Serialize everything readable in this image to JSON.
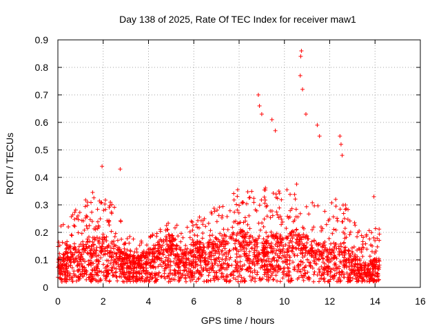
{
  "chart_data": {
    "type": "scatter",
    "title": "Day 138 of 2025, Rate Of TEC Index for receiver maw1",
    "xlabel": "GPS time / hours",
    "ylabel": "ROTI / TECUs",
    "xlim": [
      0,
      16
    ],
    "ylim": [
      0,
      0.9
    ],
    "xticks": [
      "0",
      "2",
      "4",
      "6",
      "8",
      "10",
      "12",
      "14",
      "16"
    ],
    "yticks": [
      "0",
      "0.1",
      "0.2",
      "0.3",
      "0.4",
      "0.5",
      "0.6",
      "0.7",
      "0.8",
      "0.9"
    ],
    "grid": true,
    "marker": "+",
    "color": "#ff0000",
    "data_range_hours": [
      0,
      14.2
    ],
    "series_envelope": {
      "x": [
        0.0,
        0.5,
        1.0,
        1.5,
        2.0,
        2.5,
        3.0,
        3.5,
        4.0,
        4.5,
        5.0,
        5.5,
        6.0,
        6.5,
        7.0,
        7.5,
        8.0,
        8.5,
        9.0,
        9.5,
        10.0,
        10.5,
        11.0,
        11.5,
        12.0,
        12.5,
        13.0,
        13.5,
        14.0
      ],
      "typical": [
        0.07,
        0.09,
        0.1,
        0.11,
        0.12,
        0.1,
        0.07,
        0.07,
        0.08,
        0.11,
        0.13,
        0.08,
        0.11,
        0.1,
        0.12,
        0.12,
        0.15,
        0.12,
        0.11,
        0.13,
        0.12,
        0.14,
        0.12,
        0.1,
        0.1,
        0.11,
        0.08,
        0.05,
        0.06
      ],
      "upper": [
        0.22,
        0.25,
        0.32,
        0.35,
        0.33,
        0.32,
        0.2,
        0.17,
        0.18,
        0.22,
        0.26,
        0.21,
        0.25,
        0.28,
        0.31,
        0.33,
        0.36,
        0.35,
        0.37,
        0.36,
        0.35,
        0.38,
        0.33,
        0.3,
        0.31,
        0.34,
        0.26,
        0.18,
        0.25
      ]
    },
    "notable_points": [
      {
        "x": 1.95,
        "y": 0.44
      },
      {
        "x": 2.75,
        "y": 0.43
      },
      {
        "x": 8.85,
        "y": 0.7
      },
      {
        "x": 8.9,
        "y": 0.66
      },
      {
        "x": 9.0,
        "y": 0.63
      },
      {
        "x": 9.45,
        "y": 0.61
      },
      {
        "x": 9.6,
        "y": 0.57
      },
      {
        "x": 10.75,
        "y": 0.86
      },
      {
        "x": 10.72,
        "y": 0.84
      },
      {
        "x": 10.7,
        "y": 0.77
      },
      {
        "x": 10.8,
        "y": 0.72
      },
      {
        "x": 10.95,
        "y": 0.63
      },
      {
        "x": 11.45,
        "y": 0.59
      },
      {
        "x": 11.55,
        "y": 0.55
      },
      {
        "x": 12.45,
        "y": 0.55
      },
      {
        "x": 12.5,
        "y": 0.52
      },
      {
        "x": 12.55,
        "y": 0.48
      },
      {
        "x": 13.95,
        "y": 0.33
      }
    ]
  }
}
